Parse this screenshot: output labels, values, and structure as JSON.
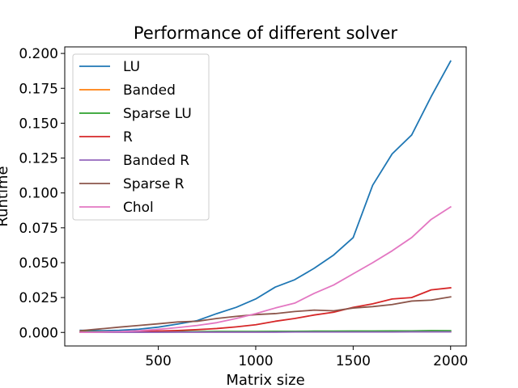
{
  "chart_data": {
    "type": "line",
    "title": "Performance of different solver",
    "xlabel": "Matrix size",
    "ylabel": "Runtime",
    "xlim": [
      20,
      2080
    ],
    "ylim": [
      -0.0097,
      0.2047
    ],
    "xticks": [
      500,
      1000,
      1500,
      2000
    ],
    "xtick_labels": [
      "500",
      "1000",
      "1500",
      "2000"
    ],
    "yticks": [
      0.0,
      0.025,
      0.05,
      0.075,
      0.1,
      0.125,
      0.15,
      0.175,
      0.2
    ],
    "ytick_labels": [
      "0.000",
      "0.025",
      "0.050",
      "0.075",
      "0.100",
      "0.125",
      "0.150",
      "0.175",
      "0.200"
    ],
    "grid": false,
    "legend_position": "top-left",
    "x": [
      100,
      200,
      300,
      400,
      500,
      600,
      700,
      800,
      900,
      1000,
      1100,
      1200,
      1300,
      1400,
      1500,
      1600,
      1700,
      1800,
      1900,
      2000
    ],
    "series": [
      {
        "name": "LU",
        "color": "#1f77b4",
        "values": [
          0.0015,
          0.0012,
          0.0015,
          0.0023,
          0.0038,
          0.006,
          0.0085,
          0.0135,
          0.018,
          0.024,
          0.0325,
          0.0378,
          0.046,
          0.0555,
          0.068,
          0.1055,
          0.128,
          0.1415,
          0.169,
          0.1945
        ]
      },
      {
        "name": "Banded",
        "color": "#ff7f0e",
        "values": [
          0.0002,
          0.0002,
          0.0002,
          0.0002,
          0.0002,
          0.0003,
          0.0003,
          0.0003,
          0.0003,
          0.0003,
          0.0004,
          0.0004,
          0.0004,
          0.0004,
          0.0004,
          0.0005,
          0.0005,
          0.0005,
          0.0005,
          0.0005
        ]
      },
      {
        "name": "Sparse LU",
        "color": "#2ca02c",
        "values": [
          0.0005,
          0.0005,
          0.0005,
          0.0005,
          0.0006,
          0.0006,
          0.0006,
          0.0007,
          0.0007,
          0.0007,
          0.0008,
          0.0008,
          0.0009,
          0.0009,
          0.001,
          0.001,
          0.0011,
          0.0011,
          0.0013,
          0.0012
        ]
      },
      {
        "name": "R",
        "color": "#d62728",
        "values": [
          0.0002,
          0.0003,
          0.0004,
          0.0007,
          0.001,
          0.0014,
          0.002,
          0.0028,
          0.004,
          0.0055,
          0.008,
          0.01,
          0.0125,
          0.0145,
          0.018,
          0.0205,
          0.024,
          0.025,
          0.0305,
          0.032
        ]
      },
      {
        "name": "Banded R",
        "color": "#9467bd",
        "values": [
          0.0001,
          0.0001,
          0.0001,
          0.0001,
          0.0001,
          0.0002,
          0.0002,
          0.0002,
          0.0002,
          0.0002,
          0.0002,
          0.0003,
          0.0003,
          0.0003,
          0.0003,
          0.0003,
          0.0003,
          0.0004,
          0.0004,
          0.0004
        ]
      },
      {
        "name": "Sparse R",
        "color": "#8c564b",
        "values": [
          0.0012,
          0.0025,
          0.0038,
          0.005,
          0.0062,
          0.0075,
          0.008,
          0.01,
          0.0115,
          0.0128,
          0.0135,
          0.015,
          0.016,
          0.0155,
          0.0175,
          0.0185,
          0.02,
          0.0225,
          0.0232,
          0.0255
        ]
      },
      {
        "name": "Chol",
        "color": "#e377c2",
        "values": [
          0.0001,
          0.0003,
          0.0006,
          0.0012,
          0.0022,
          0.0035,
          0.005,
          0.007,
          0.01,
          0.0135,
          0.0175,
          0.021,
          0.028,
          0.034,
          0.042,
          0.05,
          0.0585,
          0.068,
          0.081,
          0.09
        ]
      }
    ]
  }
}
